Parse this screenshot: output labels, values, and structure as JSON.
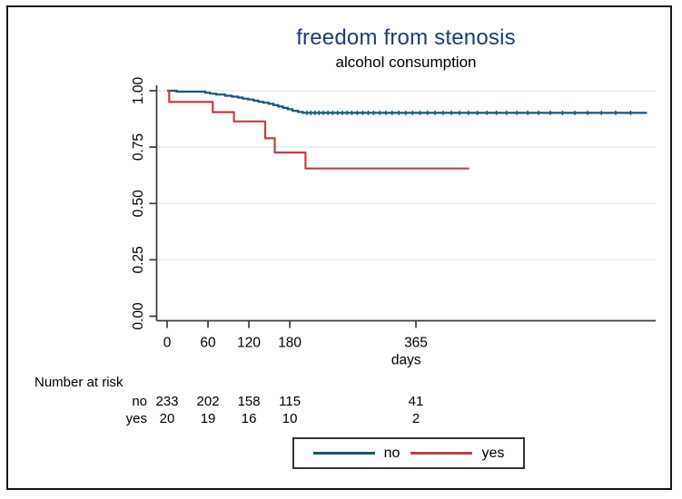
{
  "title": "freedom from stenosis",
  "subtitle": "alcohol consumption",
  "chart_data": {
    "type": "line",
    "subtype": "kaplan-meier-step",
    "title": "freedom from stenosis",
    "subtitle": "alcohol consumption",
    "xlabel": "days",
    "ylabel": "",
    "xlim": [
      0,
      716
    ],
    "ylim": [
      0.0,
      1.0
    ],
    "grid": "horizontal-only",
    "grid_values": [
      0.25,
      0.5,
      0.75,
      1.0
    ],
    "x_ticks": [
      0,
      60,
      120,
      180,
      365
    ],
    "x_tick_labels": [
      "0",
      "60",
      "120",
      "180",
      "365"
    ],
    "y_ticks": [
      1.0,
      0.75,
      0.5,
      0.25,
      0.0
    ],
    "y_tick_labels": [
      "1.00",
      "0.75",
      "0.50",
      "0.25",
      "0.00"
    ],
    "legend_position": "bottom-center-boxed",
    "series": [
      {
        "name": "no",
        "color": "#1a5677",
        "steps": [
          [
            0,
            1.0
          ],
          [
            14,
            0.996
          ],
          [
            56,
            0.991
          ],
          [
            63,
            0.987
          ],
          [
            72,
            0.983
          ],
          [
            85,
            0.978
          ],
          [
            95,
            0.974
          ],
          [
            104,
            0.97
          ],
          [
            111,
            0.965
          ],
          [
            119,
            0.961
          ],
          [
            127,
            0.956
          ],
          [
            134,
            0.951
          ],
          [
            141,
            0.947
          ],
          [
            149,
            0.942
          ],
          [
            156,
            0.936
          ],
          [
            163,
            0.93
          ],
          [
            170,
            0.924
          ],
          [
            177,
            0.918
          ],
          [
            184,
            0.911
          ],
          [
            192,
            0.906
          ],
          [
            199,
            0.902
          ],
          [
            704,
            0.902
          ]
        ],
        "censor_marks": [
          [
            205,
            0.902
          ],
          [
            211,
            0.902
          ],
          [
            217,
            0.902
          ],
          [
            223,
            0.902
          ],
          [
            229,
            0.902
          ],
          [
            236,
            0.902
          ],
          [
            243,
            0.902
          ],
          [
            250,
            0.902
          ],
          [
            257,
            0.902
          ],
          [
            264,
            0.902
          ],
          [
            271,
            0.902
          ],
          [
            279,
            0.902
          ],
          [
            287,
            0.902
          ],
          [
            295,
            0.902
          ],
          [
            303,
            0.902
          ],
          [
            312,
            0.902
          ],
          [
            321,
            0.902
          ],
          [
            330,
            0.902
          ],
          [
            340,
            0.902
          ],
          [
            350,
            0.902
          ],
          [
            360,
            0.902
          ],
          [
            371,
            0.902
          ],
          [
            382,
            0.902
          ],
          [
            393,
            0.902
          ],
          [
            405,
            0.902
          ],
          [
            417,
            0.902
          ],
          [
            429,
            0.902
          ],
          [
            442,
            0.902
          ],
          [
            455,
            0.902
          ],
          [
            469,
            0.902
          ],
          [
            483,
            0.902
          ],
          [
            498,
            0.902
          ],
          [
            513,
            0.902
          ],
          [
            529,
            0.902
          ],
          [
            545,
            0.902
          ],
          [
            562,
            0.902
          ],
          [
            580,
            0.902
          ],
          [
            598,
            0.902
          ],
          [
            617,
            0.902
          ],
          [
            637,
            0.902
          ],
          [
            658,
            0.902
          ],
          [
            680,
            0.902
          ]
        ]
      },
      {
        "name": "yes",
        "color": "#bf4048",
        "steps": [
          [
            0,
            1.0
          ],
          [
            3,
            0.95
          ],
          [
            67,
            0.905
          ],
          [
            98,
            0.864
          ],
          [
            144,
            0.789
          ],
          [
            158,
            0.726
          ],
          [
            203,
            0.655
          ],
          [
            443,
            0.655
          ]
        ],
        "censor_marks": []
      }
    ]
  },
  "risk_table": {
    "header": "Number at risk",
    "days": [
      0,
      60,
      120,
      180,
      365
    ],
    "rows": [
      {
        "label": "no",
        "counts": [
          "233",
          "202",
          "158",
          "115",
          "41"
        ]
      },
      {
        "label": "yes",
        "counts": [
          "20",
          "19",
          "16",
          "10",
          "2"
        ]
      }
    ]
  },
  "legend": {
    "items": [
      {
        "label": "no",
        "color": "#1a5677"
      },
      {
        "label": "yes",
        "color": "#bf4048"
      }
    ]
  },
  "colors": {
    "title": "#1e3c78",
    "axis": "#3c3c3c",
    "gridline": "#dfeef3",
    "text": "#000000",
    "frame_border": "#161616",
    "background": "#ffffff"
  }
}
